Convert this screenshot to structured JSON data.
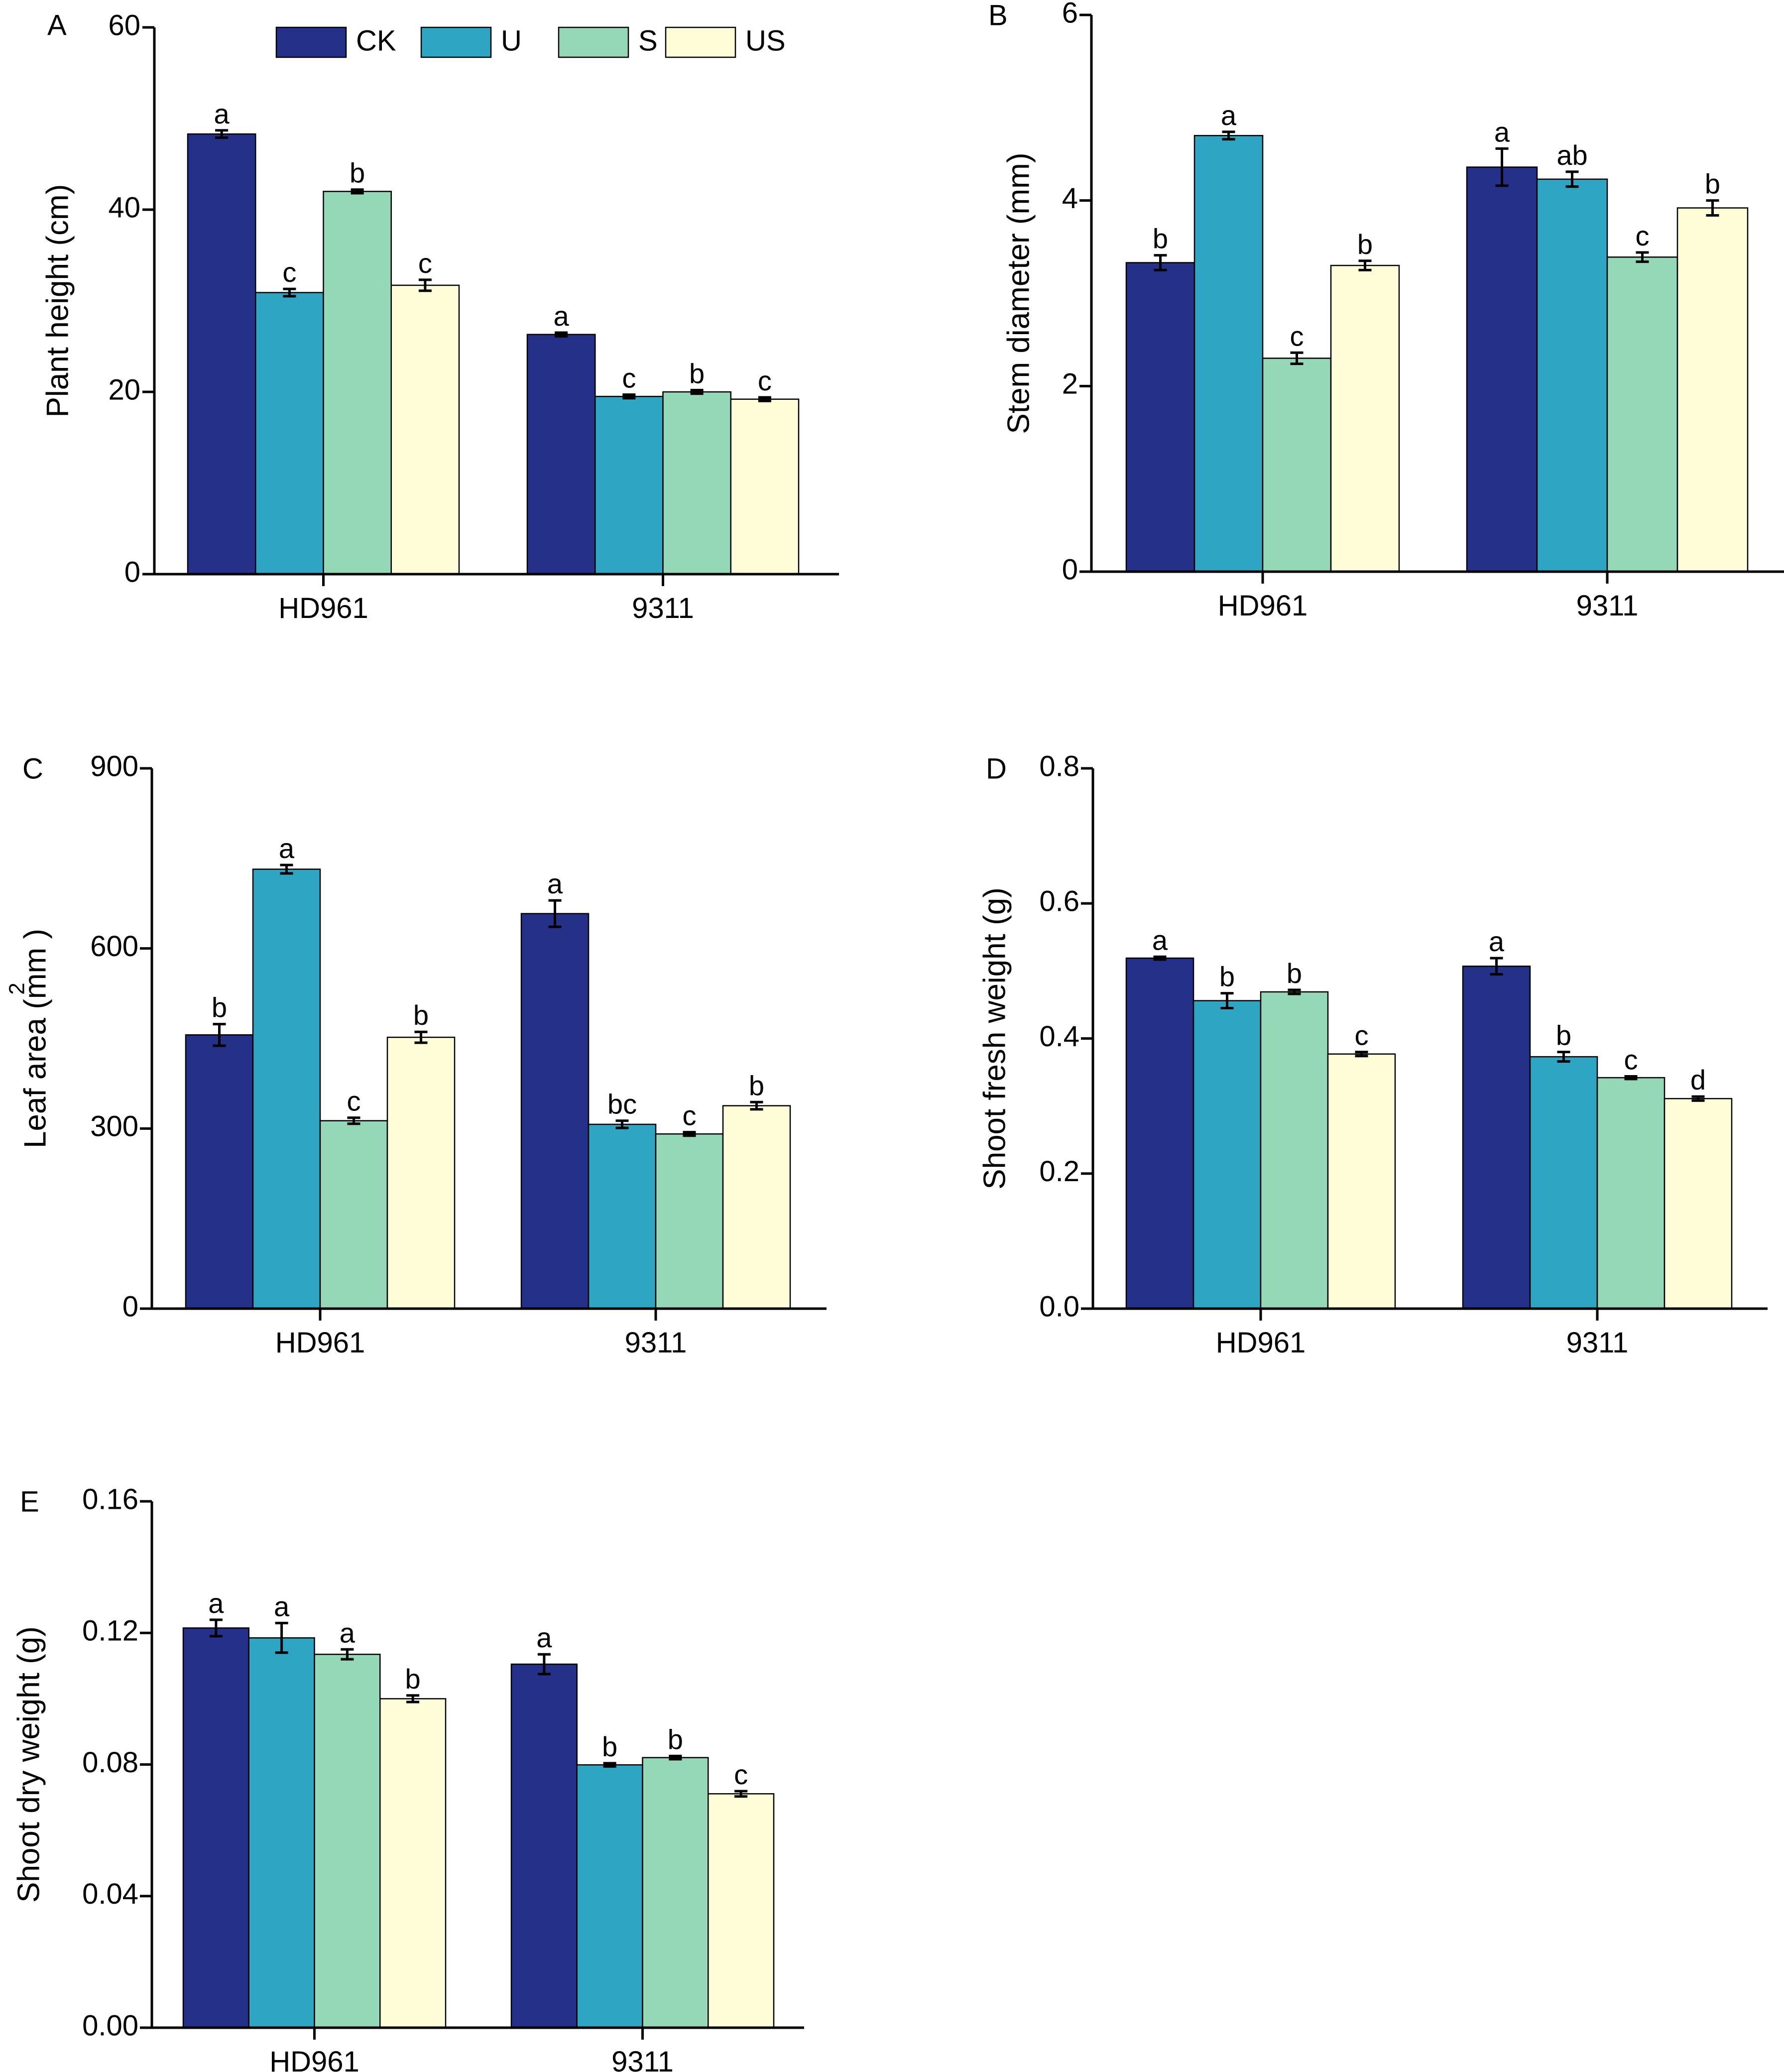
{
  "legend": {
    "entries": [
      {
        "name": "CK",
        "color": "#253188"
      },
      {
        "name": "U",
        "color": "#2fa5c4"
      },
      {
        "name": "S",
        "color": "#95d8b8"
      },
      {
        "name": "US",
        "color": "#fefdd8"
      }
    ]
  },
  "chart_data": [
    {
      "id": "A",
      "type": "bar",
      "panel_label": "A",
      "categories": [
        "HD961",
        "9311"
      ],
      "ylabel": "Plant height (cm)",
      "ylabel_superscript": "",
      "ylim": [
        0,
        60
      ],
      "yticks": [
        "0",
        "20",
        "40",
        "60"
      ],
      "series": [
        {
          "name": "CK",
          "values": [
            48.3,
            26.3
          ],
          "errors": [
            0.4,
            0.2
          ],
          "letters": [
            "a",
            "a"
          ]
        },
        {
          "name": "U",
          "values": [
            30.9,
            19.5
          ],
          "errors": [
            0.4,
            0.2
          ],
          "letters": [
            "c",
            "c"
          ]
        },
        {
          "name": "S",
          "values": [
            42.0,
            20.0
          ],
          "errors": [
            0.2,
            0.2
          ],
          "letters": [
            "b",
            "b"
          ]
        },
        {
          "name": "US",
          "values": [
            31.7,
            19.2
          ],
          "errors": [
            0.6,
            0.2
          ],
          "letters": [
            "c",
            "c"
          ]
        }
      ]
    },
    {
      "id": "B",
      "type": "bar",
      "panel_label": "B",
      "categories": [
        "HD961",
        "9311"
      ],
      "ylabel": "Stem diameter (mm)",
      "ylabel_superscript": "",
      "ylim": [
        0,
        6
      ],
      "yticks": [
        "0",
        "2",
        "4",
        "6"
      ],
      "series": [
        {
          "name": "CK",
          "values": [
            3.33,
            4.36
          ],
          "errors": [
            0.08,
            0.2
          ],
          "letters": [
            "b",
            "a"
          ]
        },
        {
          "name": "U",
          "values": [
            4.7,
            4.23
          ],
          "errors": [
            0.04,
            0.08
          ],
          "letters": [
            "a",
            "ab"
          ]
        },
        {
          "name": "S",
          "values": [
            2.3,
            3.39
          ],
          "errors": [
            0.06,
            0.05
          ],
          "letters": [
            "c",
            "c"
          ]
        },
        {
          "name": "US",
          "values": [
            3.3,
            3.92
          ],
          "errors": [
            0.05,
            0.08
          ],
          "letters": [
            "b",
            "b"
          ]
        }
      ]
    },
    {
      "id": "C",
      "type": "bar",
      "panel_label": "C",
      "categories": [
        "HD961",
        "9311"
      ],
      "ylabel": "Leaf area (mm )",
      "ylabel_superscript": "2",
      "ylim": [
        0,
        900
      ],
      "yticks": [
        "0",
        "300",
        "600",
        "900"
      ],
      "series": [
        {
          "name": "CK",
          "values": [
            456,
            658
          ],
          "errors": [
            18,
            22
          ],
          "letters": [
            "b",
            "a"
          ]
        },
        {
          "name": "U",
          "values": [
            732,
            307
          ],
          "errors": [
            7,
            6
          ],
          "letters": [
            "a",
            "bc"
          ]
        },
        {
          "name": "S",
          "values": [
            313,
            291
          ],
          "errors": [
            5,
            3
          ],
          "letters": [
            "c",
            "c"
          ]
        },
        {
          "name": "US",
          "values": [
            452,
            338
          ],
          "errors": [
            9,
            6
          ],
          "letters": [
            "b",
            "b"
          ]
        }
      ]
    },
    {
      "id": "D",
      "type": "bar",
      "panel_label": "D",
      "categories": [
        "HD961",
        "9311"
      ],
      "ylabel": "Shoot fresh weight (g)",
      "ylabel_superscript": "",
      "ylim": [
        0,
        0.8
      ],
      "yticks": [
        "0.0",
        "0.2",
        "0.4",
        "0.6",
        "0.8"
      ],
      "series": [
        {
          "name": "CK",
          "values": [
            0.519,
            0.507
          ],
          "errors": [
            0.002,
            0.012
          ],
          "letters": [
            "a",
            "a"
          ]
        },
        {
          "name": "U",
          "values": [
            0.456,
            0.373
          ],
          "errors": [
            0.011,
            0.007
          ],
          "letters": [
            "b",
            "b"
          ]
        },
        {
          "name": "S",
          "values": [
            0.469,
            0.342
          ],
          "errors": [
            0.003,
            0.002
          ],
          "letters": [
            "b",
            "c"
          ]
        },
        {
          "name": "US",
          "values": [
            0.377,
            0.311
          ],
          "errors": [
            0.003,
            0.003
          ],
          "letters": [
            "c",
            "d"
          ]
        }
      ]
    },
    {
      "id": "E",
      "type": "bar",
      "panel_label": "E",
      "categories": [
        "HD961",
        "9311"
      ],
      "ylabel": "Shoot dry weight (g)",
      "ylabel_superscript": "",
      "ylim": [
        0,
        0.16
      ],
      "yticks": [
        "0.00",
        "0.04",
        "0.08",
        "0.12",
        "0.16"
      ],
      "series": [
        {
          "name": "CK",
          "values": [
            0.1215,
            0.1105
          ],
          "errors": [
            0.0025,
            0.003
          ],
          "letters": [
            "a",
            "a"
          ]
        },
        {
          "name": "U",
          "values": [
            0.1185,
            0.0799
          ],
          "errors": [
            0.0045,
            0.0005
          ],
          "letters": [
            "a",
            "b"
          ]
        },
        {
          "name": "S",
          "values": [
            0.1135,
            0.0821
          ],
          "errors": [
            0.0015,
            0.0005
          ],
          "letters": [
            "a",
            "b"
          ]
        },
        {
          "name": "US",
          "values": [
            0.1,
            0.0711
          ],
          "errors": [
            0.001,
            0.0008
          ],
          "letters": [
            "b",
            "c"
          ]
        }
      ]
    }
  ]
}
